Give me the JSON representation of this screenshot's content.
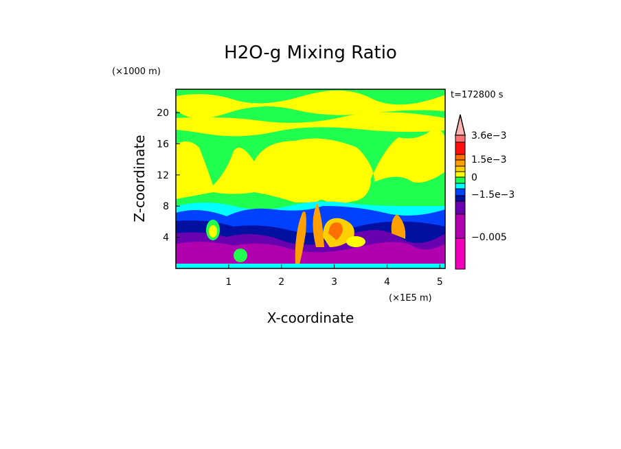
{
  "chart_data": {
    "type": "heatmap",
    "subtype": "filled-contour",
    "title": "H2O-g Mixing Ratio",
    "xlabel": "X-coordinate",
    "ylabel": "Z-coordinate",
    "x_unit_label": "(×1E5 m)",
    "y_unit_label": "(×1000 m)",
    "time_label": "t=172800 s",
    "xlim": [
      0,
      5.1
    ],
    "ylim": [
      0,
      23
    ],
    "x_ticks": [
      1,
      2,
      3,
      4,
      5
    ],
    "x_tick_labels": [
      "1",
      "2",
      "3",
      "4",
      "5"
    ],
    "y_ticks": [
      4,
      8,
      12,
      16,
      20
    ],
    "y_tick_labels": [
      "4",
      "8",
      "12",
      "16",
      "20"
    ],
    "colorbar": {
      "labels": [
        "3.6e−3",
        "1.5e−3",
        "0",
        "−1.5e−3",
        "−0.005"
      ],
      "extend_color": "#ffb4b4",
      "segments_top_to_bottom": [
        "#ff7070",
        "#ff1010",
        "#ff7000",
        "#ffa000",
        "#ffd000",
        "#ffff00",
        "#20ff50",
        "#00ffff",
        "#0040ff",
        "#0010a0",
        "#6800b0",
        "#b000b0",
        "#f000b8"
      ]
    }
  }
}
